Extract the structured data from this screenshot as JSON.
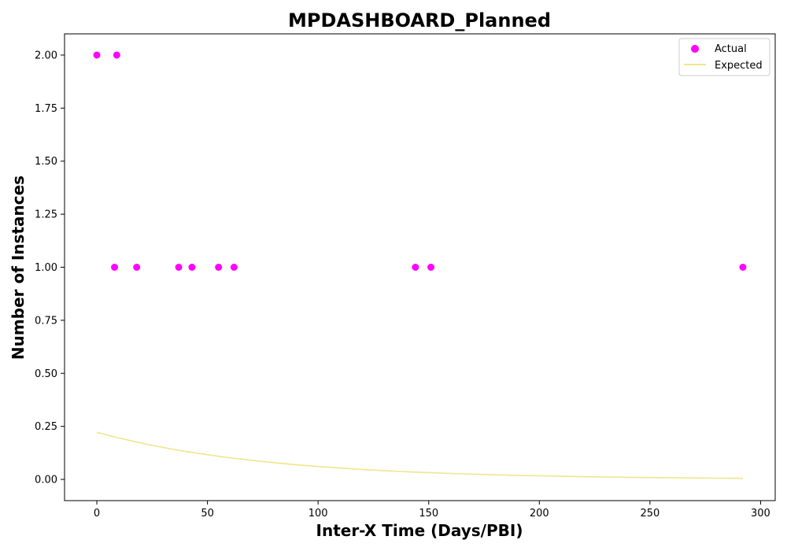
{
  "chart_data": {
    "type": "scatter",
    "title": "MPDASHBOARD_Planned",
    "xlabel": "Inter-X Time (Days/PBI)",
    "ylabel": "Number of Instances",
    "xlim": [
      -14.6,
      306.6
    ],
    "ylim": [
      -0.1,
      2.1
    ],
    "x_ticks": [
      0,
      50,
      100,
      150,
      200,
      250,
      300
    ],
    "x_tick_labels": [
      "0",
      "50",
      "100",
      "150",
      "200",
      "250",
      "300"
    ],
    "y_ticks": [
      0.0,
      0.25,
      0.5,
      0.75,
      1.0,
      1.25,
      1.5,
      1.75,
      2.0
    ],
    "y_tick_labels": [
      "0.00",
      "0.25",
      "0.50",
      "0.75",
      "1.00",
      "1.25",
      "1.50",
      "1.75",
      "2.00"
    ],
    "grid": false,
    "legend": {
      "position": "top-right",
      "entries": [
        {
          "label": "Actual",
          "marker": "circle",
          "color": "#ff00ff"
        },
        {
          "label": "Expected",
          "marker": "line",
          "color": "#f0e68c"
        }
      ]
    },
    "series": [
      {
        "name": "Actual",
        "kind": "scatter",
        "color": "#ff00ff",
        "x": [
          0,
          9,
          8,
          18,
          37,
          43,
          55,
          62,
          144,
          151,
          292
        ],
        "y": [
          2,
          2,
          1,
          1,
          1,
          1,
          1,
          1,
          1,
          1,
          1
        ]
      },
      {
        "name": "Expected",
        "kind": "line",
        "color": "#f0e68c",
        "x": [
          0,
          10,
          20,
          30,
          40,
          50,
          60,
          70,
          80,
          90,
          100,
          110,
          120,
          130,
          140,
          150,
          160,
          170,
          180,
          190,
          200,
          210,
          220,
          230,
          240,
          250,
          260,
          270,
          280,
          292
        ],
        "y": [
          0.222,
          0.1951,
          0.1714,
          0.1506,
          0.1323,
          0.1163,
          0.1022,
          0.0898,
          0.0789,
          0.0693,
          0.0609,
          0.0535,
          0.047,
          0.0413,
          0.0363,
          0.0319,
          0.028,
          0.0246,
          0.0216,
          0.019,
          0.0167,
          0.0147,
          0.0129,
          0.0113,
          0.0099,
          0.0087,
          0.0077,
          0.0067,
          0.0059,
          0.0051
        ]
      }
    ]
  }
}
